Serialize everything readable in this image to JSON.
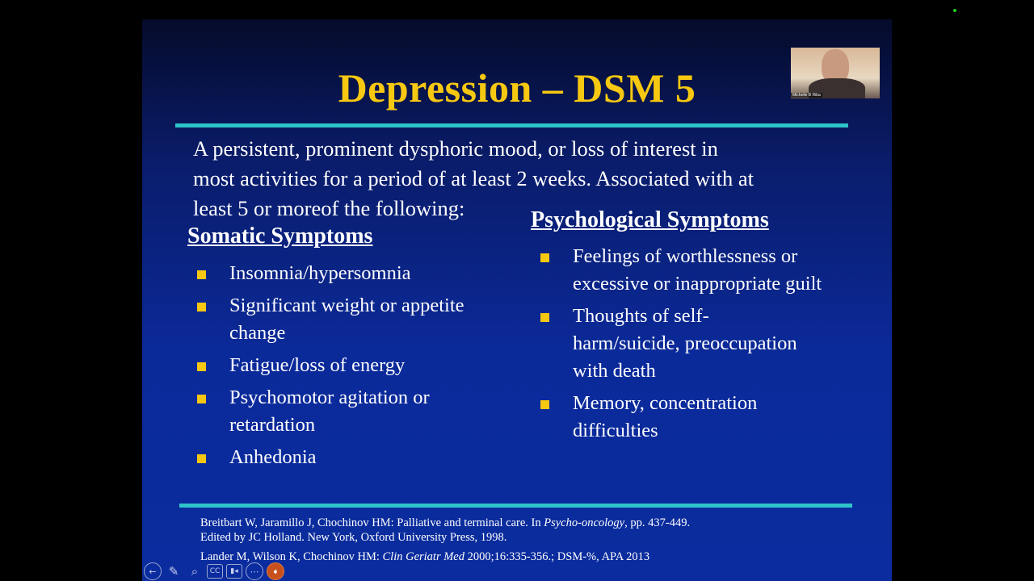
{
  "slide": {
    "title": "Depression – DSM 5",
    "intro_lines": [
      "A persistent, prominent dysphoric mood, or loss of interest in",
      "most activities for a period of at least 2 weeks. Associated with at",
      "least 5 or moreof the following:"
    ],
    "somatic": {
      "heading": "Somatic Symptoms",
      "items": [
        [
          "Insomnia/hypersomnia"
        ],
        [
          "Significant weight or appetite",
          "change"
        ],
        [
          "Fatigue/loss of  energy"
        ],
        [
          "Psychomotor agitation or",
          "retardation"
        ],
        [
          "Anhedonia"
        ]
      ]
    },
    "psychological": {
      "heading": "Psychological Symptoms",
      "items": [
        [
          "Feelings of worthlessness  or",
          "excessive or inappropriate guilt"
        ],
        [
          "Thoughts of self-",
          "harm/suicide, preoccupation",
          "with death"
        ],
        [
          "Memory, concentration",
          "difficulties"
        ]
      ]
    },
    "references": {
      "ref1_a": "Breitbart W, Jaramillo J, Chochinov HM: Palliative and terminal care. In ",
      "ref1_italic": "Psycho-oncology",
      "ref1_b": ", pp. 437-449.",
      "ref1_line2": "Edited by JC Holland. New York, Oxford University Press, 1998.",
      "ref2_a": "Lander M, Wilson K, Chochinov HM: ",
      "ref2_italic": "Clin Geriatr Med",
      "ref2_b": " 2000;16:335-356.; DSM-%, APA 2013"
    },
    "colors": {
      "title": "#f7c811",
      "rule": "#2ec4c9",
      "bullet": "#f7c811"
    }
  },
  "webcam": {
    "name": "Michelle B Riba"
  },
  "toolbar": {
    "icons": [
      "back-icon",
      "pen-icon",
      "zoom-icon",
      "captions-icon",
      "video-icon",
      "more-icon",
      "pointer-icon"
    ],
    "labels": {
      "back": "←",
      "pen": "✎",
      "zoom": "⌕",
      "cc": "CC",
      "video": "▮◂",
      "more": "⋯",
      "pointer": "➧"
    }
  }
}
